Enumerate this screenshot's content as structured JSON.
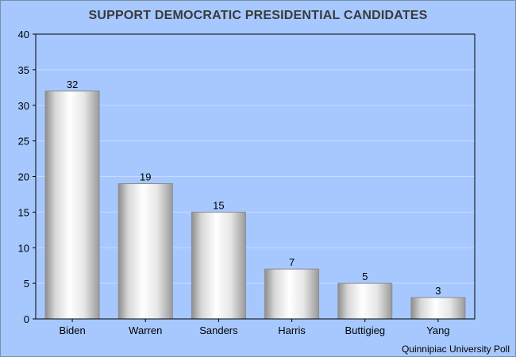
{
  "chart_data": {
    "type": "bar",
    "title": "SUPPORT DEMOCRATIC PRESIDENTIAL CANDIDATES",
    "categories": [
      "Biden",
      "Warren",
      "Sanders",
      "Harris",
      "Buttigieg",
      "Yang"
    ],
    "values": [
      32,
      19,
      15,
      7,
      5,
      3
    ],
    "data_labels": [
      "32",
      "19",
      "15",
      "7",
      "5",
      "3"
    ],
    "xlabel": "",
    "ylabel": "",
    "ylim": [
      0,
      40
    ],
    "yticks": [
      0,
      5,
      10,
      15,
      20,
      25,
      30,
      35,
      40
    ],
    "grid": true,
    "legend": "none",
    "source": "Quinnipiac University Poll",
    "colors": {
      "background": "#a6c8ff",
      "plot_area": "#a6c8ff",
      "gridline": "#c7dbff",
      "bar_edge": "#8c8c8c",
      "bar_light": "#ffffff",
      "bar_dark": "#9e9e9e",
      "axis": "#000000"
    }
  }
}
